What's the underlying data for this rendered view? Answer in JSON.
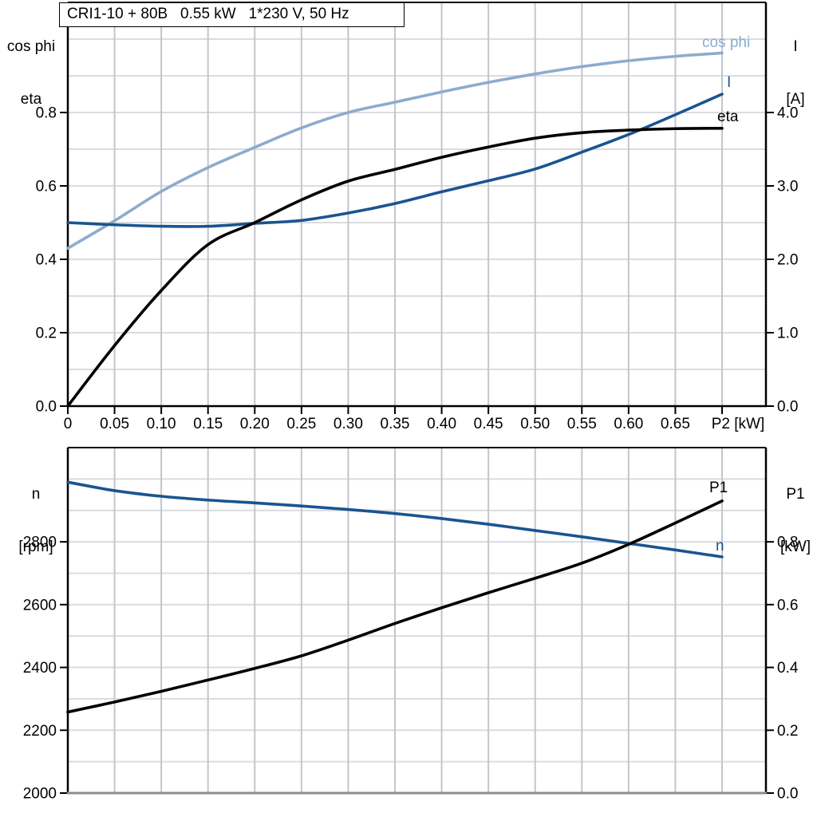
{
  "title_box": {
    "text": "CRI1-10 + 80B   0.55 kW   1*230 V, 50 Hz"
  },
  "colors": {
    "light_blue": "#8caccd",
    "dark_blue": "#1a5490",
    "black": "#000000",
    "grid_horizontal": "#dadce0",
    "grid_vertical": "#c2c6cb",
    "axis": "#000000",
    "bottom_axis_gray": "#8a8e92"
  },
  "chart_data": [
    {
      "type": "line",
      "title": "CRI1-10 + 80B   0.55 kW   1*230 V, 50 Hz",
      "xlabel": "P2 [kW]",
      "grid": true,
      "legend_position": "inline-labels",
      "x": [
        0,
        0.05,
        0.1,
        0.15,
        0.2,
        0.25,
        0.3,
        0.35,
        0.4,
        0.45,
        0.5,
        0.55,
        0.6,
        0.65,
        0.7
      ],
      "axes": {
        "x": {
          "min": 0,
          "max": 0.747,
          "tick_step": 0.05,
          "data_end": 0.7,
          "tick_labels": [
            "0",
            "0.05",
            "0.10",
            "0.15",
            "0.20",
            "0.25",
            "0.30",
            "0.35",
            "0.40",
            "0.45",
            "0.50",
            "0.55",
            "0.60",
            "0.65"
          ]
        },
        "left": {
          "min": 0,
          "max": 1.1,
          "grid_step": 0.1,
          "tick_values": [
            0,
            0.2,
            0.4,
            0.6,
            0.8
          ],
          "tick_labels": [
            "0.0",
            "0.2",
            "0.4",
            "0.6",
            "0.8"
          ],
          "title_lines": [
            "cos phi",
            "eta"
          ]
        },
        "right": {
          "min": 0,
          "max": 5.5,
          "grid_step": 0.5,
          "tick_values": [
            0,
            1,
            2,
            3,
            4
          ],
          "tick_labels": [
            "0.0",
            "1.0",
            "2.0",
            "3.0",
            "4.0"
          ],
          "title_lines": [
            "I",
            "[A]"
          ]
        }
      },
      "series": [
        {
          "name": "cos phi",
          "axis": "left",
          "color": "#8caccd",
          "values": [
            0.43,
            0.505,
            0.585,
            0.65,
            0.705,
            0.758,
            0.8,
            0.828,
            0.856,
            0.882,
            0.905,
            0.925,
            0.941,
            0.953,
            0.962
          ]
        },
        {
          "name": "I",
          "axis": "right",
          "color": "#1a5490",
          "values": [
            2.5,
            2.47,
            2.45,
            2.45,
            2.49,
            2.53,
            2.63,
            2.76,
            2.92,
            3.07,
            3.23,
            3.46,
            3.7,
            3.97,
            4.25
          ]
        },
        {
          "name": "eta",
          "axis": "left",
          "color": "#000000",
          "values": [
            0,
            0.165,
            0.315,
            0.44,
            0.5,
            0.562,
            0.613,
            0.645,
            0.678,
            0.706,
            0.73,
            0.745,
            0.752,
            0.756,
            0.757
          ]
        }
      ]
    },
    {
      "type": "line",
      "title": "",
      "xlabel": "",
      "grid": true,
      "legend_position": "inline-labels",
      "x": [
        0,
        0.05,
        0.1,
        0.15,
        0.2,
        0.25,
        0.3,
        0.35,
        0.4,
        0.45,
        0.5,
        0.55,
        0.6,
        0.65,
        0.7
      ],
      "axes": {
        "x": {
          "min": 0,
          "max": 0.747,
          "tick_step": 0.05,
          "data_end": 0.7,
          "tick_labels": []
        },
        "left": {
          "min": 2000,
          "max": 3100,
          "grid_step": 100,
          "tick_values": [
            2000,
            2200,
            2400,
            2600,
            2800
          ],
          "tick_labels": [
            "2000",
            "2200",
            "2400",
            "2600",
            "2800"
          ],
          "title_lines": [
            "n",
            "[rpm]"
          ]
        },
        "right": {
          "min": 0,
          "max": 1.1,
          "grid_step": 0.1,
          "tick_values": [
            0,
            0.2,
            0.4,
            0.6,
            0.8
          ],
          "tick_labels": [
            "0.0",
            "0.2",
            "0.4",
            "0.6",
            "0.8"
          ],
          "title_lines": [
            "P1",
            "[kW]"
          ]
        }
      },
      "series": [
        {
          "name": "n",
          "axis": "left",
          "color": "#1a5490",
          "values": [
            2990,
            2963,
            2945,
            2933,
            2924,
            2914,
            2903,
            2890,
            2874,
            2856,
            2836,
            2816,
            2795,
            2774,
            2752
          ]
        },
        {
          "name": "P1",
          "axis": "right",
          "color": "#000000",
          "values": [
            0.258,
            0.29,
            0.324,
            0.36,
            0.397,
            0.437,
            0.487,
            0.54,
            0.59,
            0.638,
            0.684,
            0.732,
            0.792,
            0.86,
            0.93
          ]
        }
      ]
    }
  ]
}
